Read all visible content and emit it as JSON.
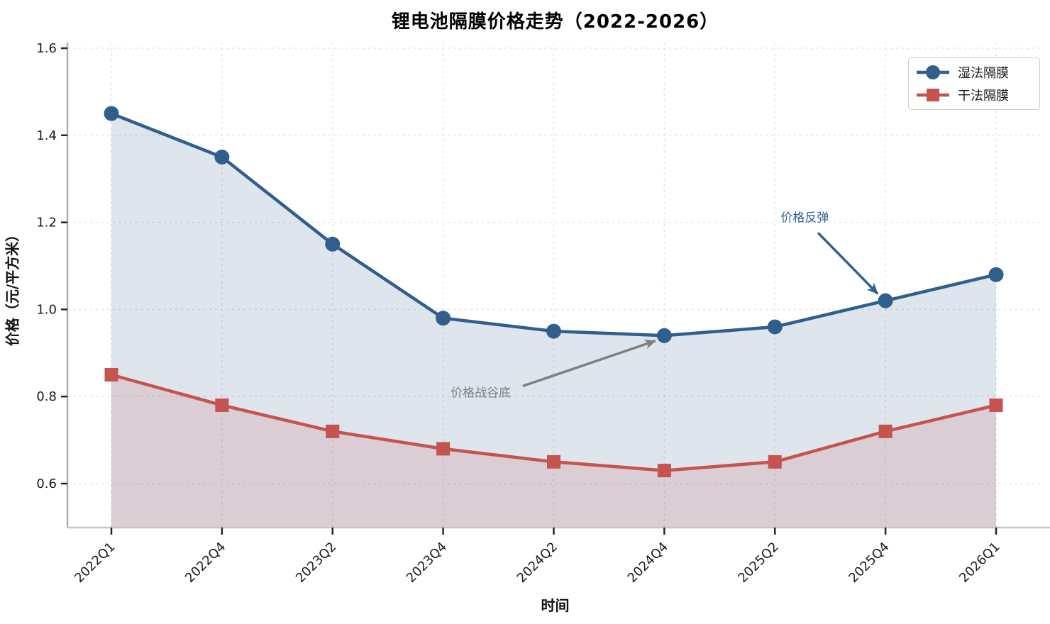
{
  "title": "锂电池隔膜价格走势（2022-2026）",
  "chart_data": {
    "type": "line",
    "categories": [
      "2022Q1",
      "2022Q4",
      "2023Q2",
      "2023Q4",
      "2024Q2",
      "2024Q4",
      "2025Q2",
      "2025Q4",
      "2026Q1"
    ],
    "series": [
      {
        "name": "湿法隔膜",
        "marker": "circle",
        "color": "#305f8e",
        "fill": "rgba(48,95,142,0.16)",
        "values": [
          1.45,
          1.35,
          1.15,
          0.98,
          0.95,
          0.94,
          0.96,
          1.02,
          1.08
        ]
      },
      {
        "name": "干法隔膜",
        "marker": "square",
        "color": "#c5534f",
        "fill": "rgba(197,83,79,0.16)",
        "values": [
          0.85,
          0.78,
          0.72,
          0.68,
          0.65,
          0.63,
          0.65,
          0.72,
          0.78
        ]
      }
    ],
    "xlabel": "时间",
    "ylabel": "价格（元/平方米）",
    "ylim": [
      0.5,
      1.61
    ],
    "yticks": [
      0.6,
      0.8,
      1.0,
      1.2,
      1.4,
      1.6
    ],
    "grid": true,
    "grid_style": "dashed",
    "legend_position": "upper right",
    "annotations": [
      {
        "text": "价格战谷底",
        "color": "#7f7f7f",
        "arrow_color": "#808080",
        "text_x": 3.34,
        "text_y": 0.812,
        "from_x": 3.72,
        "from_y": 0.824,
        "to_x": 4.92,
        "to_y": 0.928,
        "points_at": {
          "category": "2024Q4",
          "series": "湿法隔膜",
          "value": 0.94
        }
      },
      {
        "text": "价格反弹",
        "color": "#2f6191",
        "arrow_color": "#2f6191",
        "text_x": 6.27,
        "text_y": 1.214,
        "from_x": 6.39,
        "from_y": 1.176,
        "to_x": 6.93,
        "to_y": 1.036,
        "points_at": {
          "category": "2025Q4",
          "series": "湿法隔膜",
          "value": 1.02
        }
      }
    ]
  }
}
